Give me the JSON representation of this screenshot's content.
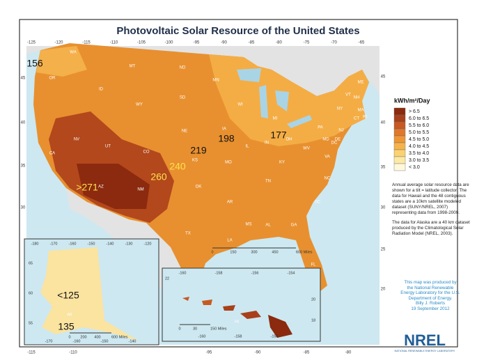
{
  "title": "Photovoltaic Solar Resource of the United States",
  "longitude_top": [
    -125,
    -120,
    -115,
    -110,
    -105,
    -100,
    -95,
    -90,
    -85,
    -80,
    -75,
    -70,
    -65
  ],
  "longitude_bottom": [
    -115,
    -110,
    -95,
    -90,
    -85,
    -80
  ],
  "latitude_left": [
    45,
    40,
    35,
    30
  ],
  "latitude_right": [
    45,
    40,
    35,
    30,
    25,
    20
  ],
  "states": [
    "WA",
    "OR",
    "CA",
    "NV",
    "ID",
    "MT",
    "WY",
    "UT",
    "AZ",
    "NM",
    "CO",
    "ND",
    "SD",
    "NE",
    "KS",
    "OK",
    "TX",
    "MN",
    "IA",
    "MO",
    "AR",
    "LA",
    "WI",
    "IL",
    "MS",
    "MI",
    "IN",
    "KY",
    "TN",
    "AL",
    "GA",
    "FL",
    "OH",
    "WV",
    "VA",
    "NC",
    "SC",
    "PA",
    "NY",
    "ME",
    "VT",
    "NH",
    "MA",
    "RI",
    "CT",
    "NJ",
    "DE",
    "MD",
    "DC",
    "AK",
    "HI"
  ],
  "map_values": [
    ">271",
    "260",
    "240",
    "219",
    "198",
    "177",
    "156",
    "<125",
    "135"
  ],
  "scale_main": [
    "0",
    "150",
    "300",
    "450",
    "600 Miles"
  ],
  "scale_alaska": [
    "0",
    "200",
    "400",
    "600 Miles"
  ],
  "scale_hawaii": [
    "0",
    "30",
    "150 Miles"
  ],
  "alaska_ticks_top": [
    -180,
    -170,
    -160,
    -150,
    -140,
    -130,
    -120
  ],
  "alaska_ticks_bottom": [
    -170,
    -160,
    -150,
    -140
  ],
  "alaska_ticks_side": [
    65,
    60,
    55
  ],
  "hawaii_ticks_top": [
    -160,
    -158,
    -156,
    -154
  ],
  "hawaii_ticks_bottom": [
    -160,
    -158,
    -156
  ],
  "hawaii_ticks_side": [
    22,
    20,
    18
  ],
  "legend": {
    "title": "kWh/m²/Day",
    "items": [
      {
        "label": "> 6.5",
        "color": "#8b2a0e"
      },
      {
        "label": "6.0 to 6.5",
        "color": "#a8401a"
      },
      {
        "label": "5.5 to 6.0",
        "color": "#c75a22"
      },
      {
        "label": "5.0 to 5.5",
        "color": "#e0782b"
      },
      {
        "label": "4.5 to 5.0",
        "color": "#ee9636"
      },
      {
        "label": "4.0 to 4.5",
        "color": "#f6b34c"
      },
      {
        "label": "3.5 to 4.0",
        "color": "#fbd272"
      },
      {
        "label": "3.0 to 3.5",
        "color": "#fde9a6"
      },
      {
        "label": "< 3.0",
        "color": "#fff8dc"
      }
    ]
  },
  "notes": [
    "Annual average solar resource data are shown for a tilt = latitude collector. The data for Hawaii and the 48 contiguous states are a 10km satellite modeled dataset (SUNY/NREL, 2007) representing data from 1998-2009.",
    "The data for Alaska are a 40 km dataset produced by the Climatological Solar Radiation Model (NREL, 2003)."
  ],
  "credit": [
    "This map was produced by",
    "the National Renewable",
    "Energy Laboratory for the U.S.",
    "Department of Energy.",
    "Billy J. Roberts",
    "19 September 2012"
  ],
  "logo": {
    "name": "NREL",
    "subtitle": "NATIONAL RENEWABLE ENERGY LABORATORY"
  }
}
